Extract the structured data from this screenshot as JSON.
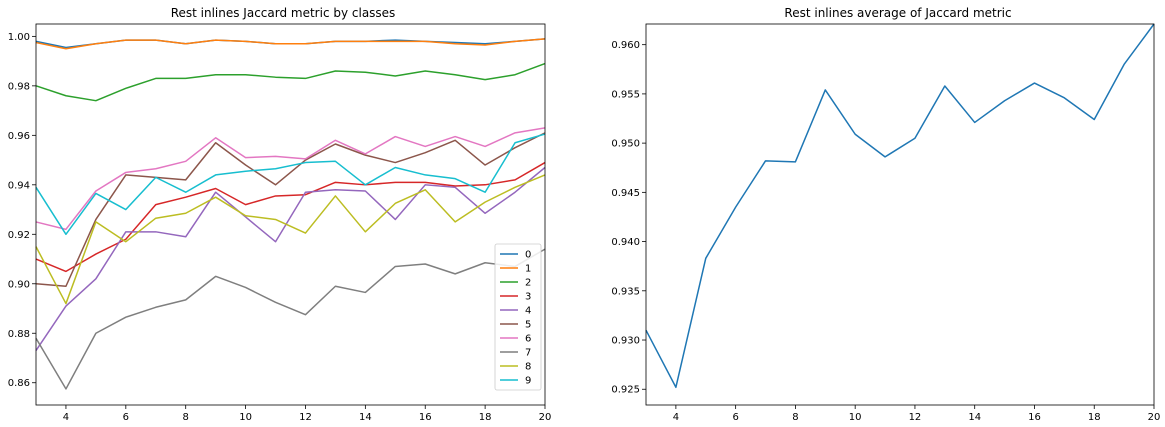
{
  "chart_data": [
    {
      "type": "line",
      "title": "Rest inlines Jaccard metric by classes",
      "xlabel": "",
      "ylabel": "",
      "xlim": [
        3,
        20
      ],
      "ylim": [
        0.851,
        1.005
      ],
      "xticks": [
        4,
        6,
        8,
        10,
        12,
        14,
        16,
        18,
        20
      ],
      "yticks": [
        0.86,
        0.88,
        0.9,
        0.92,
        0.94,
        0.96,
        0.98,
        1.0
      ],
      "ytick_labels": [
        "0.86",
        "0.88",
        "0.90",
        "0.92",
        "0.94",
        "0.96",
        "0.98",
        "1.00"
      ],
      "grid": false,
      "legend": "lower-right",
      "x": [
        3,
        4,
        5,
        6,
        7,
        8,
        9,
        10,
        11,
        12,
        13,
        14,
        15,
        16,
        17,
        18,
        19,
        20
      ],
      "series": [
        {
          "name": "0",
          "color": "#1f77b4",
          "values": [
            0.998,
            0.9955,
            0.997,
            0.9985,
            0.9985,
            0.997,
            0.9985,
            0.998,
            0.997,
            0.997,
            0.998,
            0.998,
            0.9985,
            0.998,
            0.9975,
            0.997,
            0.998,
            0.999
          ]
        },
        {
          "name": "1",
          "color": "#ff7f0e",
          "values": [
            0.9975,
            0.995,
            0.997,
            0.9985,
            0.9985,
            0.997,
            0.9985,
            0.998,
            0.997,
            0.997,
            0.998,
            0.998,
            0.998,
            0.998,
            0.997,
            0.9965,
            0.998,
            0.999
          ]
        },
        {
          "name": "2",
          "color": "#2ca02c",
          "values": [
            0.98,
            0.976,
            0.974,
            0.979,
            0.983,
            0.983,
            0.9845,
            0.9845,
            0.9835,
            0.983,
            0.986,
            0.9855,
            0.984,
            0.986,
            0.9845,
            0.9825,
            0.9845,
            0.989
          ]
        },
        {
          "name": "3",
          "color": "#d62728",
          "values": [
            0.91,
            0.905,
            0.912,
            0.918,
            0.932,
            0.935,
            0.9385,
            0.932,
            0.9355,
            0.936,
            0.941,
            0.94,
            0.941,
            0.941,
            0.9395,
            0.94,
            0.942,
            0.949
          ]
        },
        {
          "name": "4",
          "color": "#9467bd",
          "values": [
            0.873,
            0.891,
            0.902,
            0.921,
            0.921,
            0.919,
            0.937,
            0.927,
            0.917,
            0.937,
            0.938,
            0.9375,
            0.926,
            0.94,
            0.939,
            0.9285,
            0.937,
            0.947
          ]
        },
        {
          "name": "5",
          "color": "#8c564b",
          "values": [
            0.9,
            0.899,
            0.926,
            0.944,
            0.943,
            0.942,
            0.957,
            0.948,
            0.94,
            0.95,
            0.9565,
            0.952,
            0.949,
            0.953,
            0.958,
            0.948,
            0.955,
            0.961
          ]
        },
        {
          "name": "6",
          "color": "#e377c2",
          "values": [
            0.925,
            0.922,
            0.9375,
            0.945,
            0.9465,
            0.9495,
            0.959,
            0.951,
            0.9515,
            0.9505,
            0.958,
            0.9525,
            0.9595,
            0.9555,
            0.9595,
            0.9555,
            0.961,
            0.963
          ]
        },
        {
          "name": "7",
          "color": "#7f7f7f",
          "values": [
            0.878,
            0.8575,
            0.88,
            0.8865,
            0.8905,
            0.8935,
            0.903,
            0.8985,
            0.8925,
            0.8875,
            0.899,
            0.8965,
            0.907,
            0.908,
            0.904,
            0.9085,
            0.907,
            0.914
          ]
        },
        {
          "name": "8",
          "color": "#bcbd22",
          "values": [
            0.915,
            0.892,
            0.925,
            0.917,
            0.9265,
            0.9285,
            0.935,
            0.9275,
            0.926,
            0.9205,
            0.9355,
            0.921,
            0.9325,
            0.938,
            0.925,
            0.933,
            0.939,
            0.944
          ]
        },
        {
          "name": "9",
          "color": "#17becf",
          "values": [
            0.939,
            0.92,
            0.9365,
            0.93,
            0.943,
            0.937,
            0.944,
            0.9455,
            0.9465,
            0.949,
            0.9495,
            0.94,
            0.947,
            0.944,
            0.9425,
            0.937,
            0.957,
            0.9605
          ]
        }
      ]
    },
    {
      "type": "line",
      "title": "Rest inlines average of Jaccard metric",
      "xlabel": "",
      "ylabel": "",
      "xlim": [
        3,
        20
      ],
      "ylim": [
        0.9234,
        0.9621
      ],
      "xticks": [
        4,
        6,
        8,
        10,
        12,
        14,
        16,
        18,
        20
      ],
      "yticks": [
        0.925,
        0.93,
        0.935,
        0.94,
        0.945,
        0.95,
        0.955,
        0.96
      ],
      "ytick_labels": [
        "0.925",
        "0.930",
        "0.935",
        "0.940",
        "0.945",
        "0.950",
        "0.955",
        "0.960"
      ],
      "grid": false,
      "x": [
        3,
        4,
        5,
        6,
        7,
        8,
        9,
        10,
        11,
        12,
        13,
        14,
        15,
        16,
        17,
        18,
        19,
        20
      ],
      "series": [
        {
          "color": "#1f77b4",
          "values": [
            0.931,
            0.9252,
            0.9383,
            0.9435,
            0.9482,
            0.9481,
            0.9554,
            0.9509,
            0.9486,
            0.9505,
            0.9558,
            0.9521,
            0.9543,
            0.9561,
            0.9546,
            0.9524,
            0.958,
            0.9621
          ]
        }
      ]
    }
  ]
}
